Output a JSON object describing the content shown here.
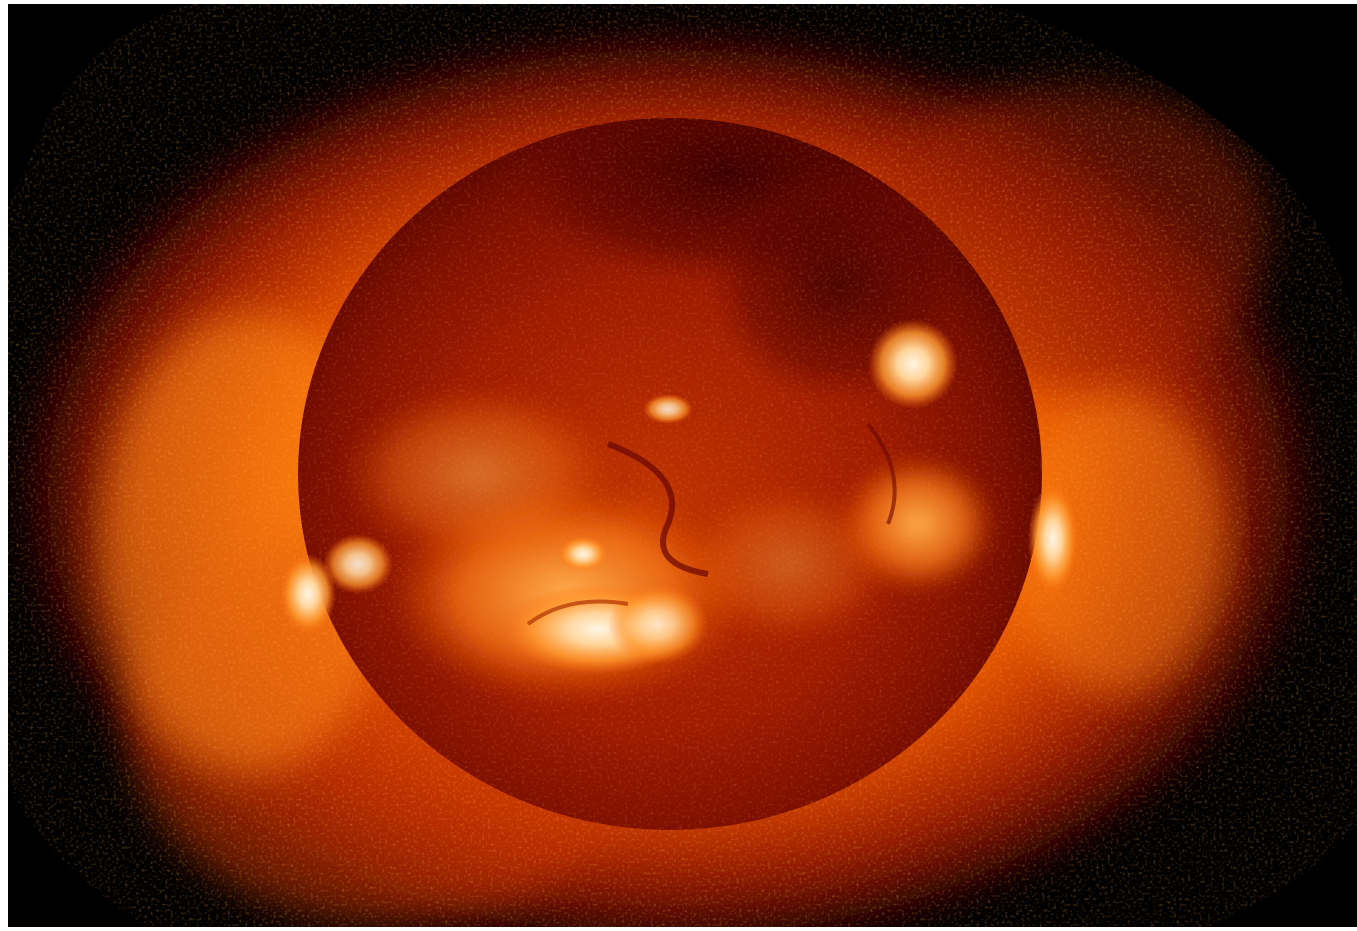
{
  "image": {
    "subject": "sun-xray",
    "colors": {
      "background": "#000000",
      "border": "#ffffff",
      "corona_outer": "#8a1500",
      "corona_mid": "#d84a00",
      "corona_bright": "#ff8a10",
      "disk_dark": "#6e0a00",
      "disk_mid": "#a51e00",
      "active_region": "#ffd8a0",
      "flare_core": "#fff4e0"
    }
  }
}
